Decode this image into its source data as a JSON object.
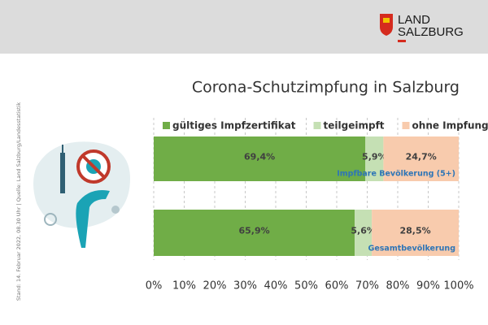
{
  "header": {
    "logo_line1": "LAND",
    "logo_line2": "SALZBURG"
  },
  "source_note": "Stand: 14. Februar 2022, 08.30 Uhr | Quelle: Land Salzburg/Landesstatistik",
  "chart_data": {
    "type": "stacked-barh",
    "title": "Corona-Schutzimpfung in Salzburg",
    "categories": [
      "Impfbare Bevölkerung (5+)",
      "Gesamtbevölkerung"
    ],
    "series": [
      {
        "name": "gültiges Impfzertifikat",
        "color": "#70ad47",
        "values": [
          69.4,
          65.9
        ],
        "value_labels": [
          "69,4%",
          "65,9%"
        ]
      },
      {
        "name": "teilgeimpft",
        "color": "#c5e0b4",
        "values": [
          5.9,
          5.6
        ],
        "value_labels": [
          "5,9%",
          "5,6%"
        ]
      },
      {
        "name": "ohne Impfung",
        "color": "#f8cbad",
        "values": [
          24.7,
          28.5
        ],
        "value_labels": [
          "24,7%",
          "28,5%"
        ]
      }
    ],
    "xlim": [
      0,
      100
    ],
    "xticks": [
      {
        "value": 0,
        "label": "0%"
      },
      {
        "value": 10,
        "label": "10%"
      },
      {
        "value": 20,
        "label": "20%"
      },
      {
        "value": 30,
        "label": "30%"
      },
      {
        "value": 40,
        "label": "40%"
      },
      {
        "value": 50,
        "label": "50%"
      },
      {
        "value": 60,
        "label": "60%"
      },
      {
        "value": 70,
        "label": "70%"
      },
      {
        "value": 80,
        "label": "80%"
      },
      {
        "value": 90,
        "label": "90%"
      },
      {
        "value": 100,
        "label": "100%"
      }
    ],
    "grid": true,
    "legend": "top"
  }
}
